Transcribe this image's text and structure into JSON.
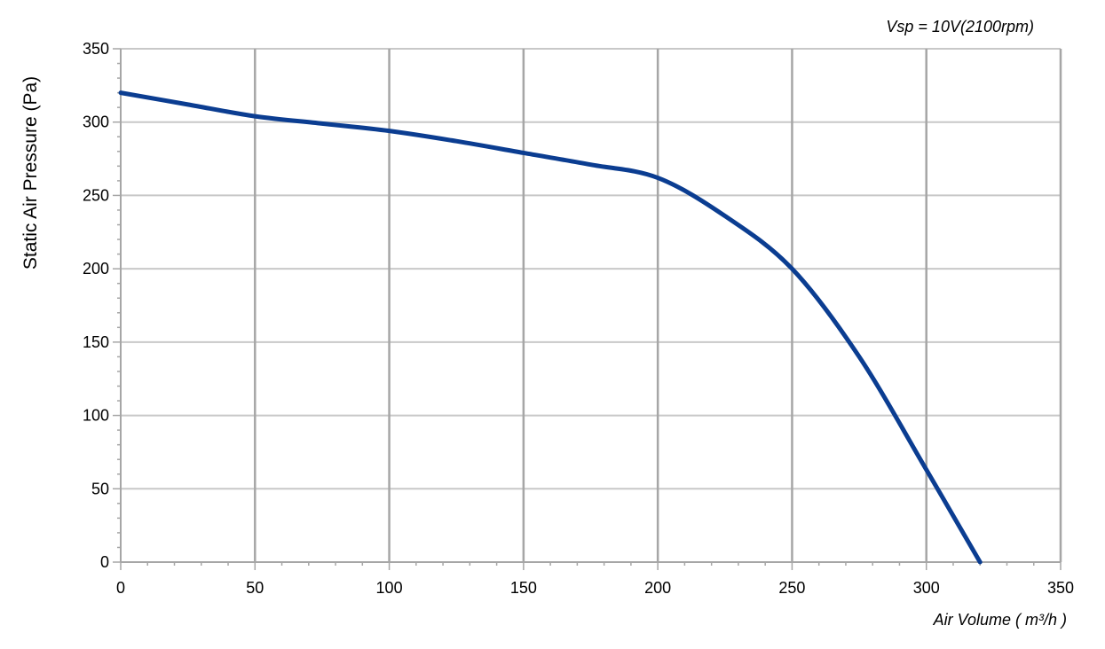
{
  "chart_data": {
    "type": "line",
    "title": "",
    "annotation": "Vsp = 10V(2100rpm)",
    "xlabel": "Air Volume ( m³/h )",
    "ylabel": "Static Air Pressure  (Pa)",
    "xlim": [
      0,
      350
    ],
    "ylim": [
      0,
      350
    ],
    "x_ticks": [
      0,
      50,
      100,
      150,
      200,
      250,
      300,
      350
    ],
    "y_ticks": [
      0,
      50,
      100,
      150,
      200,
      250,
      300,
      350
    ],
    "grid": true,
    "series": [
      {
        "color": "#0b3d91",
        "x": [
          0,
          25,
          50,
          75,
          100,
          125,
          150,
          175,
          200,
          225,
          250,
          275,
          300,
          320
        ],
        "y": [
          320,
          312,
          304,
          299,
          294,
          287,
          279,
          271,
          262,
          236,
          200,
          140,
          63,
          0
        ]
      }
    ]
  }
}
